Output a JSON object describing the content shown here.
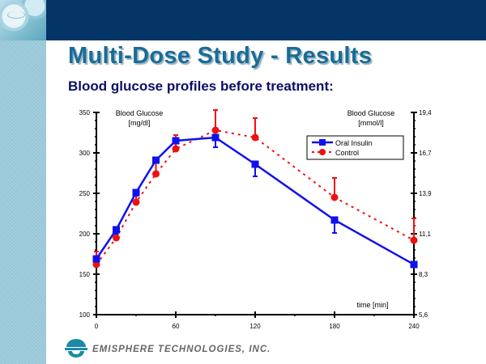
{
  "slide": {
    "title": "Multi-Dose Study - Results",
    "subtitle": "Blood glucose profiles before treatment:",
    "footer_company": "EMISPHERE TECHNOLOGIES, INC.",
    "colors": {
      "header": "#053466",
      "title": "#1a6c95",
      "subtitle": "#0e0e66",
      "oral_insulin": "#1010ee",
      "control": "#ee1111"
    }
  },
  "chart_data": {
    "type": "line",
    "title": "",
    "xlabel": "time [min]",
    "ylabel_left": [
      "Blood Glucose",
      "[mg/dl]"
    ],
    "ylabel_right": [
      "Blood Glucose",
      "[mmol/l]"
    ],
    "xlim": [
      0,
      240
    ],
    "ylim": [
      100,
      350
    ],
    "x_ticks": [
      0,
      60,
      120,
      180,
      240
    ],
    "x_tick_labels": [
      "0",
      "60",
      "120",
      "180",
      "240"
    ],
    "y_ticks_left": [
      100,
      150,
      200,
      250,
      300,
      350
    ],
    "y_tick_labels_left": [
      "100",
      "150",
      "200",
      "250",
      "300",
      "350"
    ],
    "y_tick_labels_right": [
      "5,6",
      "8,3",
      "11,1",
      "13,9",
      "16,7",
      "19,4"
    ],
    "grid": false,
    "legend_position": "top-right",
    "series": [
      {
        "name": "Oral Insulin",
        "style": "solid",
        "marker": "square",
        "x": [
          0,
          15,
          30,
          45,
          60,
          90,
          120,
          180,
          240
        ],
        "y": [
          169,
          205,
          251,
          291,
          315,
          319,
          286,
          217,
          162
        ],
        "error": [
          0,
          5,
          4,
          3,
          3,
          12,
          15,
          16,
          0
        ],
        "error_direction": "down"
      },
      {
        "name": "Control",
        "style": "dashed",
        "marker": "circle",
        "x": [
          0,
          15,
          30,
          45,
          60,
          90,
          120,
          180,
          240
        ],
        "y": [
          162,
          195,
          239,
          274,
          305,
          328,
          319,
          245,
          192
        ],
        "error": [
          16,
          12,
          12,
          17,
          17,
          25,
          24,
          24,
          27
        ],
        "error_direction": "up"
      }
    ]
  }
}
